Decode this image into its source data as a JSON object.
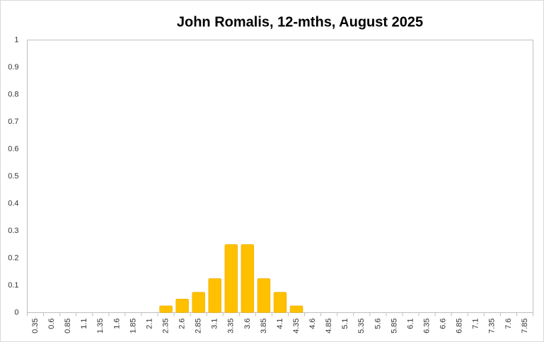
{
  "chart_data": {
    "type": "bar",
    "title": "John Romalis, 12-mths, August 2025",
    "categories": [
      "0.35",
      "0.6",
      "0.85",
      "1.1",
      "1.35",
      "1.6",
      "1.85",
      "2.1",
      "2.35",
      "2.6",
      "2.85",
      "3.1",
      "3.35",
      "3.6",
      "3.85",
      "4.1",
      "4.35",
      "4.6",
      "4.85",
      "5.1",
      "5.35",
      "5.6",
      "5.85",
      "6.1",
      "6.35",
      "6.6",
      "6.85",
      "7.1",
      "7.35",
      "7.6",
      "7.85"
    ],
    "values": [
      0,
      0,
      0,
      0,
      0,
      0,
      0,
      0,
      0.025,
      0.05,
      0.075,
      0.125,
      0.25,
      0.25,
      0.125,
      0.075,
      0.025,
      0,
      0,
      0,
      0,
      0,
      0,
      0,
      0,
      0,
      0,
      0,
      0,
      0,
      0
    ],
    "color": "#ffc000",
    "ylim": [
      0,
      1
    ],
    "yticks": [
      0,
      0.1,
      0.2,
      0.3,
      0.4,
      0.5,
      0.6,
      0.7,
      0.8,
      0.9,
      1
    ],
    "grid": false
  }
}
